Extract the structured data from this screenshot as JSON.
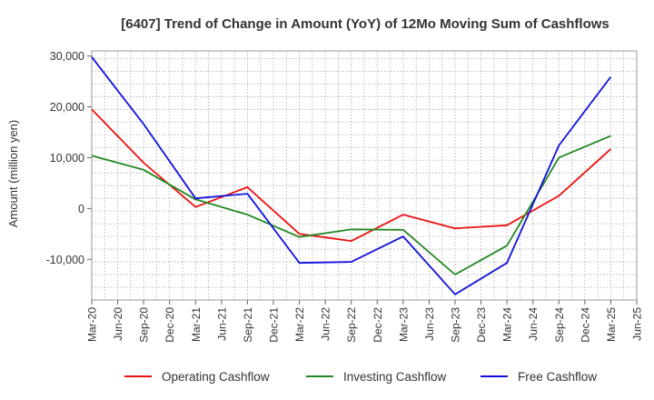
{
  "chart_data": {
    "type": "line",
    "title": "[6407]  Trend of Change in Amount (YoY) of 12Mo Moving Sum of Cashflows",
    "xlabel": "",
    "ylabel": "Amount (million yen)",
    "ylim": [
      -18000,
      31000
    ],
    "yticks": [
      30000,
      20000,
      10000,
      0,
      -10000
    ],
    "ytick_labels": [
      "30,000",
      "20,000",
      "10,000",
      "0",
      "-10,000"
    ],
    "x_ticks": [
      "Mar-20",
      "Jun-20",
      "Sep-20",
      "Dec-20",
      "Mar-21",
      "Jun-21",
      "Sep-21",
      "Dec-21",
      "Mar-22",
      "Jun-22",
      "Sep-22",
      "Dec-22",
      "Mar-23",
      "Jun-23",
      "Sep-23",
      "Dec-23",
      "Mar-24",
      "Jun-24",
      "Sep-24",
      "Dec-24",
      "Mar-25",
      "Jun-25"
    ],
    "grid": true,
    "legend_position": "bottom",
    "series": [
      {
        "name": "Operating Cashflow",
        "color": "#ee1111",
        "points": [
          {
            "x": "Mar-20",
            "y": 19500
          },
          {
            "x": "Sep-20",
            "y": 9000
          },
          {
            "x": "Mar-21",
            "y": 300
          },
          {
            "x": "Sep-21",
            "y": 4200
          },
          {
            "x": "Mar-22",
            "y": -5000
          },
          {
            "x": "Sep-22",
            "y": -6400
          },
          {
            "x": "Mar-23",
            "y": -1200
          },
          {
            "x": "Sep-23",
            "y": -3900
          },
          {
            "x": "Mar-24",
            "y": -3300
          },
          {
            "x": "Sep-24",
            "y": 2500
          },
          {
            "x": "Mar-25",
            "y": 11700
          }
        ]
      },
      {
        "name": "Investing Cashflow",
        "color": "#228822",
        "points": [
          {
            "x": "Mar-20",
            "y": 10400
          },
          {
            "x": "Sep-20",
            "y": 7600
          },
          {
            "x": "Mar-21",
            "y": 1800
          },
          {
            "x": "Sep-21",
            "y": -1200
          },
          {
            "x": "Mar-22",
            "y": -5600
          },
          {
            "x": "Sep-22",
            "y": -4100
          },
          {
            "x": "Mar-23",
            "y": -4200
          },
          {
            "x": "Sep-23",
            "y": -13000
          },
          {
            "x": "Mar-24",
            "y": -7300
          },
          {
            "x": "Sep-24",
            "y": 10000
          },
          {
            "x": "Mar-25",
            "y": 14300
          }
        ]
      },
      {
        "name": "Free Cashflow",
        "color": "#1111dd",
        "points": [
          {
            "x": "Mar-20",
            "y": 29800
          },
          {
            "x": "Sep-20",
            "y": 16600
          },
          {
            "x": "Mar-21",
            "y": 2000
          },
          {
            "x": "Sep-21",
            "y": 2900
          },
          {
            "x": "Mar-22",
            "y": -10700
          },
          {
            "x": "Sep-22",
            "y": -10500
          },
          {
            "x": "Mar-23",
            "y": -5500
          },
          {
            "x": "Sep-23",
            "y": -16900
          },
          {
            "x": "Mar-24",
            "y": -10700
          },
          {
            "x": "Sep-24",
            "y": 12400
          },
          {
            "x": "Mar-25",
            "y": 25900
          }
        ]
      }
    ]
  }
}
